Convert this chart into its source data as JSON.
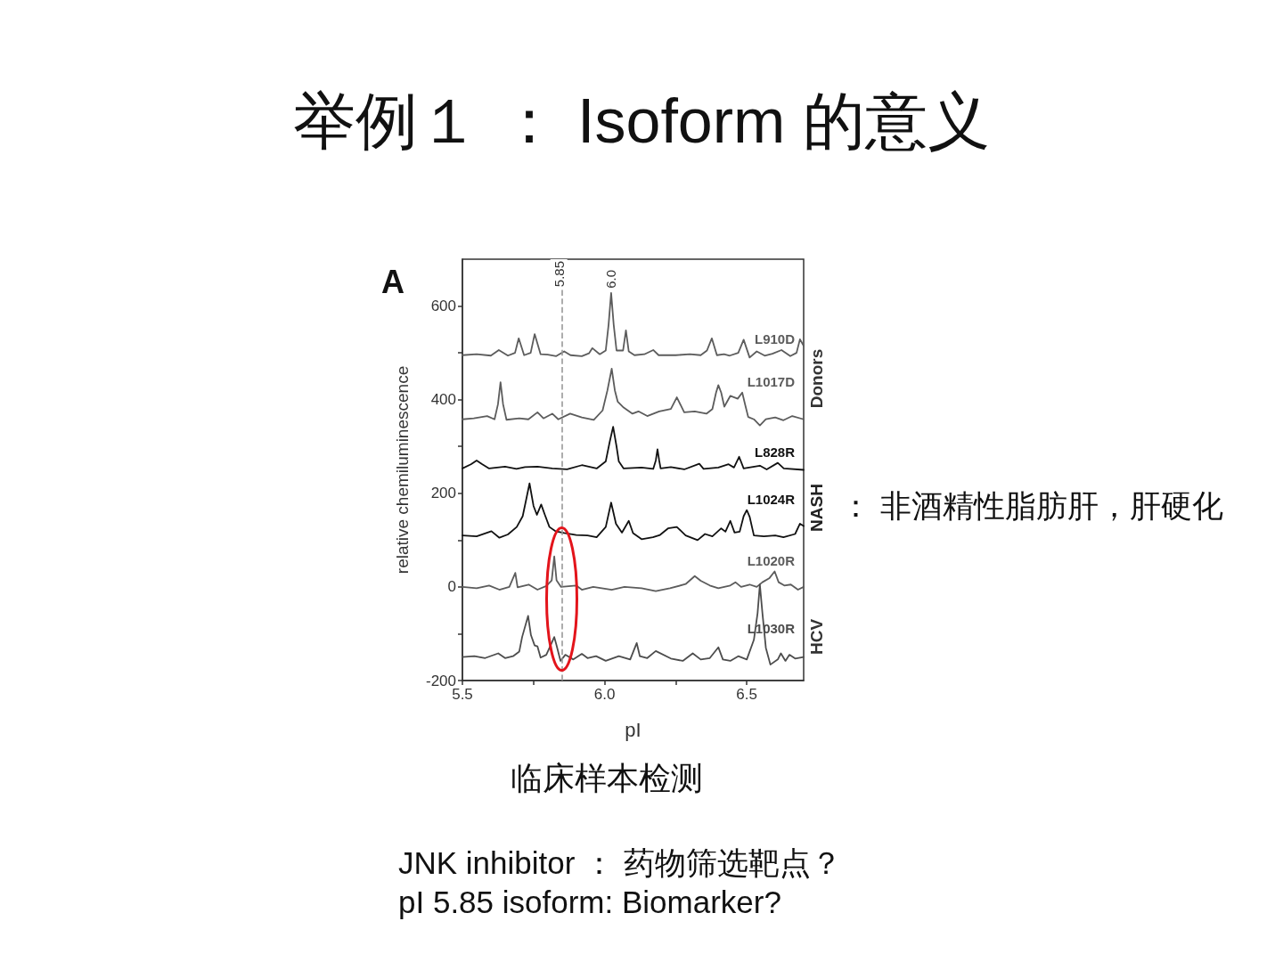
{
  "chart_data": {
    "type": "line",
    "title": "举例１ ： Isoform 的意义",
    "xlabel": "pI",
    "ylabel": "relative chemiluminescence",
    "xlim": [
      5.5,
      6.7
    ],
    "xticks": [
      5.5,
      {
        "value": 5.75,
        "label": null
      },
      {
        "value": 6,
        "label": "6.0"
      },
      {
        "value": 6.25,
        "label": null
      },
      6.5
    ],
    "ylim": [
      -200,
      700
    ],
    "yticks": [
      -200,
      {
        "value": -100,
        "label": null
      },
      0,
      {
        "value": 100,
        "label": null
      },
      200,
      {
        "value": 300,
        "label": null
      },
      400,
      {
        "value": 500,
        "label": null
      },
      600
    ],
    "marker": "none",
    "series": [
      {
        "name": "L910D",
        "color": "#5c5c5c",
        "x": [
          5.5,
          5.55,
          5.6,
          5.628,
          5.66,
          5.685,
          5.698,
          5.717,
          5.74,
          5.754,
          5.775,
          5.8,
          5.83,
          5.858,
          5.88,
          5.92,
          5.945,
          5.957,
          5.983,
          6.004,
          6.014,
          6.023,
          6.032,
          6.042,
          6.065,
          6.075,
          6.085,
          6.105,
          6.14,
          6.171,
          6.19,
          6.25,
          6.3,
          6.338,
          6.36,
          6.377,
          6.395,
          6.42,
          6.44,
          6.47,
          6.489,
          6.51,
          6.535,
          6.563,
          6.59,
          6.622,
          6.653,
          6.675,
          6.687,
          6.7
        ],
        "values": [
          495,
          497,
          494,
          506,
          494,
          500,
          531,
          495,
          500,
          540,
          497,
          496,
          493,
          503,
          495,
          493,
          499,
          510,
          497,
          505,
          560,
          628,
          560,
          505,
          505,
          548,
          503,
          495,
          497,
          506,
          495,
          495,
          497,
          495,
          505,
          531,
          495,
          497,
          494,
          500,
          528,
          490,
          503,
          494,
          498,
          506,
          493,
          500,
          529,
          515
        ]
      },
      {
        "name": "L1017D",
        "color": "#5c5c5c",
        "x": [
          5.5,
          5.54,
          5.587,
          5.613,
          5.625,
          5.634,
          5.643,
          5.655,
          5.7,
          5.732,
          5.764,
          5.785,
          5.816,
          5.837,
          5.879,
          5.92,
          5.962,
          5.993,
          6.01,
          6.025,
          6.036,
          6.046,
          6.067,
          6.098,
          6.119,
          6.15,
          6.192,
          6.233,
          6.254,
          6.28,
          6.317,
          6.358,
          6.379,
          6.392,
          6.4,
          6.41,
          6.421,
          6.442,
          6.468,
          6.484,
          6.494,
          6.505,
          6.525,
          6.546,
          6.567,
          6.6,
          6.629,
          6.66,
          6.7
        ],
        "values": [
          358,
          360,
          365,
          358,
          390,
          437,
          390,
          357,
          360,
          358,
          373,
          360,
          370,
          358,
          370,
          362,
          357,
          377,
          420,
          466,
          420,
          396,
          383,
          370,
          375,
          365,
          375,
          380,
          405,
          373,
          375,
          370,
          380,
          415,
          431,
          415,
          385,
          408,
          402,
          415,
          390,
          363,
          358,
          345,
          358,
          362,
          356,
          365,
          358
        ]
      },
      {
        "name": "L828R",
        "color": "#111111",
        "x": [
          5.5,
          5.53,
          5.55,
          5.57,
          5.594,
          5.65,
          5.69,
          5.72,
          5.764,
          5.816,
          5.868,
          5.92,
          5.972,
          6.004,
          6.018,
          6.03,
          6.042,
          6.05,
          6.067,
          6.13,
          6.171,
          6.18,
          6.186,
          6.192,
          6.197,
          6.233,
          6.28,
          6.333,
          6.348,
          6.4,
          6.436,
          6.455,
          6.473,
          6.489,
          6.546,
          6.57,
          6.609,
          6.63,
          6.7
        ],
        "values": [
          253,
          262,
          270,
          262,
          253,
          257,
          252,
          256,
          257,
          253,
          251,
          260,
          253,
          268,
          310,
          342,
          300,
          268,
          253,
          255,
          252,
          270,
          294,
          270,
          253,
          256,
          251,
          263,
          252,
          255,
          262,
          255,
          278,
          253,
          259,
          251,
          265,
          253,
          250
        ]
      },
      {
        "name": "L1024R",
        "color": "#111111",
        "x": [
          5.5,
          5.55,
          5.602,
          5.63,
          5.66,
          5.691,
          5.712,
          5.722,
          5.736,
          5.75,
          5.762,
          5.777,
          5.79,
          5.806,
          5.827,
          5.858,
          5.9,
          5.94,
          5.972,
          6.004,
          6.023,
          6.04,
          6.061,
          6.085,
          6.1,
          6.13,
          6.17,
          6.195,
          6.223,
          6.254,
          6.285,
          6.327,
          6.353,
          6.379,
          6.41,
          6.425,
          6.442,
          6.457,
          6.475,
          6.489,
          6.5,
          6.51,
          6.525,
          6.56,
          6.6,
          6.629,
          6.67,
          6.687,
          6.7
        ],
        "values": [
          110,
          108,
          119,
          105,
          112,
          128,
          151,
          180,
          221,
          173,
          154,
          176,
          154,
          128,
          119,
          115,
          111,
          110,
          106,
          128,
          180,
          135,
          116,
          141,
          115,
          102,
          106,
          111,
          125,
          128,
          110,
          100,
          113,
          108,
          125,
          118,
          141,
          116,
          118,
          151,
          164,
          150,
          110,
          108,
          110,
          106,
          113,
          135,
          130
        ]
      },
      {
        "name": "L1020R",
        "color": "#5c5c5c",
        "x": [
          5.5,
          5.55,
          5.594,
          5.63,
          5.665,
          5.686,
          5.694,
          5.733,
          5.764,
          5.795,
          5.814,
          5.823,
          5.831,
          5.847,
          5.9,
          5.92,
          5.96,
          6.025,
          6.07,
          6.13,
          6.18,
          6.23,
          6.285,
          6.317,
          6.338,
          6.37,
          6.4,
          6.442,
          6.46,
          6.48,
          6.51,
          6.535,
          6.555,
          6.58,
          6.598,
          6.612,
          6.632,
          6.655,
          6.68,
          6.7
        ],
        "values": [
          0,
          -3,
          3,
          -6,
          0,
          30,
          -1,
          5,
          -6,
          2,
          14,
          65,
          14,
          0,
          3,
          -6,
          0,
          -6,
          0,
          -3,
          -9,
          -3,
          6,
          23,
          13,
          3,
          -3,
          3,
          10,
          0,
          5,
          0,
          10,
          19,
          33,
          10,
          3,
          5,
          -6,
          0
        ]
      },
      {
        "name": "L1030R",
        "color": "#4d4d4d",
        "x": [
          5.5,
          5.542,
          5.58,
          5.626,
          5.65,
          5.678,
          5.7,
          5.71,
          5.731,
          5.741,
          5.754,
          5.764,
          5.775,
          5.795,
          5.81,
          5.823,
          5.831,
          5.845,
          5.862,
          5.89,
          5.92,
          5.94,
          5.97,
          6.004,
          6.05,
          6.09,
          6.113,
          6.124,
          6.15,
          6.18,
          6.233,
          6.275,
          6.31,
          6.338,
          6.37,
          6.4,
          6.416,
          6.442,
          6.47,
          6.5,
          6.525,
          6.538,
          6.546,
          6.555,
          6.567,
          6.583,
          6.609,
          6.62,
          6.636,
          6.65,
          6.67,
          6.7
        ],
        "values": [
          -150,
          -148,
          -152,
          -142,
          -152,
          -148,
          -138,
          -107,
          -62,
          -103,
          -125,
          -127,
          -151,
          -145,
          -125,
          -107,
          -125,
          -158,
          -145,
          -155,
          -143,
          -152,
          -148,
          -158,
          -148,
          -155,
          -120,
          -148,
          -152,
          -137,
          -153,
          -158,
          -142,
          -155,
          -152,
          -129,
          -155,
          -158,
          -148,
          -155,
          -113,
          -56,
          5,
          -56,
          -130,
          -166,
          -155,
          -142,
          -158,
          -145,
          -153,
          -150
        ]
      }
    ],
    "ref_lines": [
      {
        "axis": "x",
        "value": 5.85,
        "label": "5.85",
        "color": "#999999",
        "line_style": "dashed"
      }
    ],
    "annotations": [
      "A",
      {
        "text": "6.0",
        "x": 6.023,
        "y": 628
      },
      "Donors",
      "NASH",
      "HCV",
      "： 非酒精性脂肪肝，肝硬化",
      "临床样本检测",
      "JNK inhibitor ： 药物筛选靶点？",
      "pI 5.85 isoform: Biomarker?"
    ]
  }
}
